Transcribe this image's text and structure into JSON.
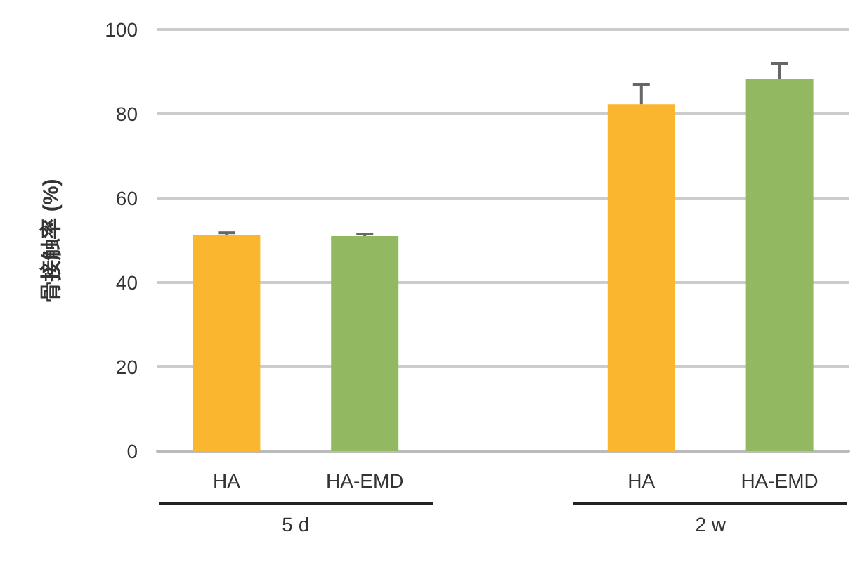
{
  "chart_data": {
    "type": "bar",
    "ylabel": "骨接触率 (%)",
    "categories": [
      "HA",
      "HA-EMD",
      null,
      "HA",
      "HA-EMD"
    ],
    "values": [
      51.3,
      51,
      null,
      82.3,
      88.3
    ],
    "errors": [
      0.5,
      0.5,
      null,
      4.7,
      3.7
    ],
    "colors": [
      "#fbb62f",
      "#93b862",
      null,
      "#fbb62f",
      "#93b862"
    ],
    "annotations": [
      "5 d",
      "2 w"
    ],
    "ylim": [
      0,
      100
    ],
    "yticks": [
      0,
      20,
      40,
      60,
      80,
      100
    ],
    "grid": "y"
  }
}
